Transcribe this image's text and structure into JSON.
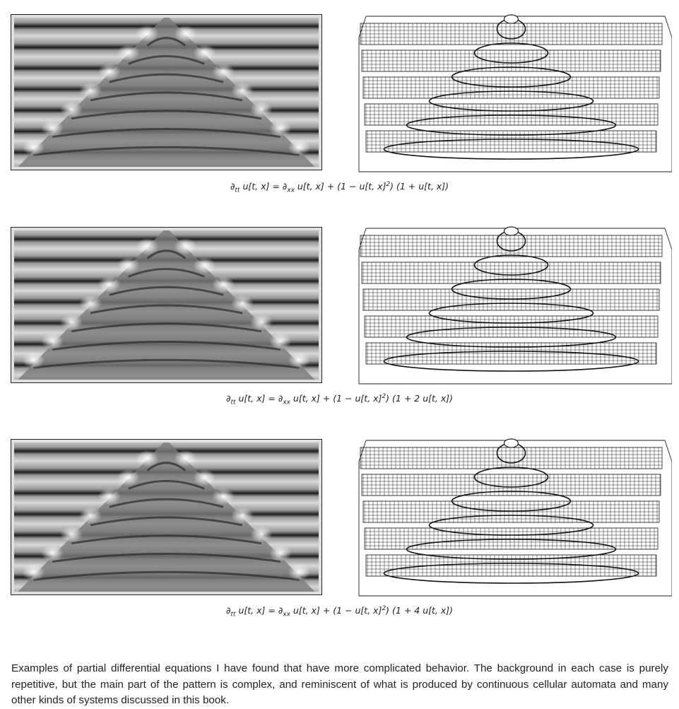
{
  "figures": [
    {
      "equation": "∂tt u[t, x] = ∂xx u[t, x] + (1 − u[t, x]2) (1 + u[t, x])",
      "eq_parts": {
        "lhs_sub": "tt",
        "rhs_sub": "xx",
        "factor": "(1 + u[t, x])"
      }
    },
    {
      "equation": "∂tt u[t, x] = ∂xx u[t, x] + (1 − u[t, x]2) (1 + 2 u[t, x])",
      "eq_parts": {
        "lhs_sub": "tt",
        "rhs_sub": "xx",
        "factor": "(1 + 2 u[t, x])"
      }
    },
    {
      "equation": "∂tt u[t, x] = ∂xx u[t, x] + (1 − u[t, x]2) (1 + 4 u[t, x])",
      "eq_parts": {
        "lhs_sub": "tt",
        "rhs_sub": "xx",
        "factor": "(1 + 4 u[t, x])"
      }
    }
  ],
  "caption": "Examples of partial differential equations I have found that have more complicated behavior. The background in each case is purely repetitive, but the main part of the pattern is complex, and reminiscent of what is produced by continuous cellular automata and many other kinds of systems discussed in this book.",
  "colors": {
    "ink": "#222222",
    "gray": "#888888",
    "light": "#f0f0f0",
    "dark": "#111111"
  }
}
